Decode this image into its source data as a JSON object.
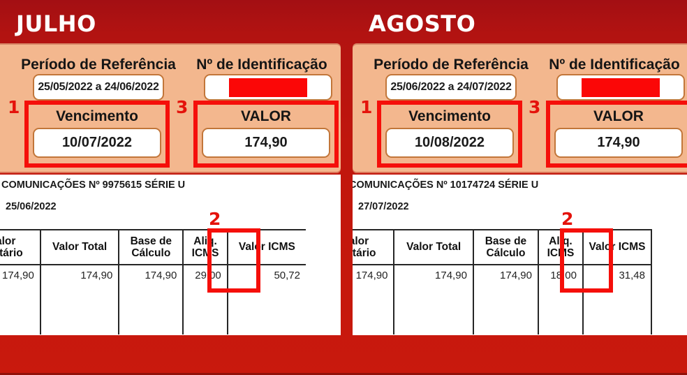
{
  "colors": {
    "background_red_top": "#a30f13",
    "background_red": "#c9190d",
    "panel_orange": "#f3b78e",
    "box_border_tan": "#c2763a",
    "highlight_red": "#f50f0a",
    "redacted_red": "#fb0707",
    "text_dark": "#1a1a1a"
  },
  "shared": {
    "periodo_label": "Período de Referência",
    "identificacao_label": "Nº de Identificação",
    "vencimento_label": "Vencimento",
    "valor_label": "VALOR",
    "marker_vencimento": "1",
    "marker_aliq": "2",
    "marker_valor": "3",
    "table_headers": {
      "col1_line1": "Valor",
      "col1_line2": "Unitário",
      "col2": "Valor Total",
      "col3_line1": "Base de",
      "col3_line2": "Cálculo",
      "col4_line1": "Aliq.",
      "col4_line2": "ICMS",
      "col5": "Valor ICMS"
    }
  },
  "bills": [
    {
      "month": "JULHO",
      "periodo_value": "25/05/2022 a 24/06/2022",
      "vencimento_value": "10/07/2022",
      "valor_value": "174,90",
      "doc_line": "COMUNICAÇÕES Nº 9975615 SÉRIE U",
      "doc_date": "25/06/2022",
      "row": {
        "valor_unitario": "174,90",
        "valor_total": "174,90",
        "base_calculo": "174,90",
        "aliq_icms": "29,00",
        "valor_icms": "50,72"
      }
    },
    {
      "month": "AGOSTO",
      "periodo_value": "25/06/2022 a 24/07/2022",
      "vencimento_value": "10/08/2022",
      "valor_value": "174,90",
      "doc_line": "COMUNICAÇÕES Nº 10174724 SÉRIE U",
      "doc_date": "27/07/2022",
      "row": {
        "valor_unitario": "174,90",
        "valor_total": "174,90",
        "base_calculo": "174,90",
        "aliq_icms": "18,00",
        "valor_icms": "31,48"
      }
    }
  ]
}
